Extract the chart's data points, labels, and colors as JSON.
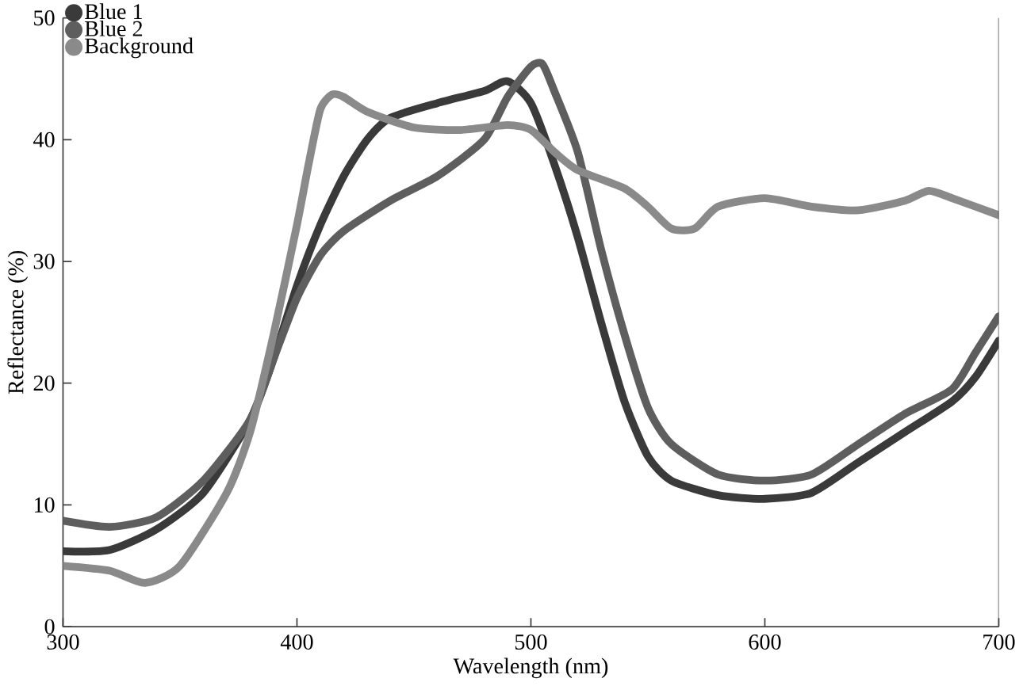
{
  "chart_data": {
    "type": "line",
    "xlabel": "Wavelength (nm)",
    "ylabel": "Reflectance (%)",
    "xlim": [
      300,
      700
    ],
    "xticks": [
      300,
      400,
      500,
      600,
      700
    ],
    "ylim": [
      0,
      50
    ],
    "yticks": [
      0,
      10,
      20,
      30,
      40,
      50
    ],
    "grid": false,
    "legend": "top left",
    "marker": "none",
    "line_style": "solid",
    "series": [
      {
        "name": "Blue 1",
        "color": "#3a3a3a",
        "x": [
          300,
          320,
          340,
          360,
          380,
          390,
          400,
          410,
          420,
          430,
          440,
          460,
          480,
          490,
          500,
          510,
          520,
          530,
          540,
          550,
          560,
          580,
          600,
          620,
          640,
          660,
          680,
          690,
          700
        ],
        "values": [
          6.2,
          6.3,
          8,
          11,
          17,
          22,
          28,
          33,
          37,
          40,
          41.8,
          43,
          44,
          44.8,
          43,
          38,
          32,
          25,
          18.5,
          14,
          12,
          10.8,
          10.5,
          11,
          13.5,
          16,
          18.5,
          20.5,
          23.5
        ]
      },
      {
        "name": "Blue 2",
        "color": "#5e5e5e",
        "x": [
          300,
          320,
          340,
          360,
          380,
          390,
          400,
          410,
          420,
          440,
          460,
          480,
          490,
          500,
          505,
          510,
          520,
          530,
          540,
          550,
          560,
          580,
          600,
          620,
          640,
          660,
          680,
          690,
          700
        ],
        "values": [
          8.7,
          8.2,
          9,
          12,
          17,
          22,
          27,
          30.5,
          32.5,
          35,
          37,
          40,
          43.5,
          46,
          46.2,
          44,
          39,
          31,
          24,
          18,
          15,
          12.5,
          12,
          12.5,
          15,
          17.5,
          19.5,
          22.5,
          25.5
        ]
      },
      {
        "name": "Background",
        "color": "#8a8a8a",
        "x": [
          300,
          320,
          335,
          350,
          370,
          380,
          390,
          400,
          405,
          410,
          415,
          420,
          430,
          450,
          470,
          490,
          500,
          510,
          520,
          540,
          550,
          560,
          570,
          580,
          600,
          620,
          640,
          660,
          670,
          680,
          700
        ],
        "values": [
          5,
          4.6,
          3.6,
          5,
          11,
          16,
          24,
          33,
          38,
          42.5,
          43.7,
          43.5,
          42.3,
          41,
          40.8,
          41.2,
          40.8,
          39,
          37.5,
          36,
          34.5,
          32.7,
          32.7,
          34.5,
          35.2,
          34.5,
          34.2,
          35,
          35.8,
          35.2,
          33.8
        ]
      }
    ]
  }
}
